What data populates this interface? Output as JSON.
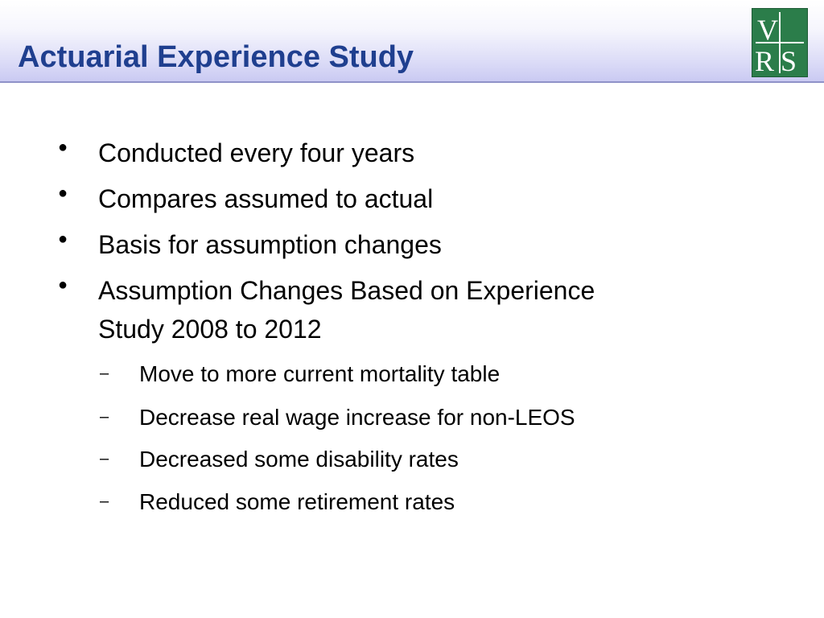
{
  "slide": {
    "title": "Actuarial Experience Study",
    "logo": {
      "text": "VRS",
      "background_color": "#2b7d4a",
      "letter_color": "#ffffff"
    },
    "bullet_marker": "●",
    "sub_bullet_marker": "–",
    "bullets": [
      "Conducted every four years",
      "Compares assumed to actual",
      "Basis for assumption changes",
      "Assumption Changes Based on Experience Study 2008 to 2012"
    ],
    "bullet_4_lines": [
      "Assumption Changes Based on Experience",
      "Study 2008 to 2012"
    ],
    "sub_bullets": [
      "Move to more current mortality table",
      "Decrease real wage increase for non-LEOS",
      "Decreased some disability rates",
      "Reduced some retirement rates"
    ]
  },
  "colors": {
    "title_color": "#1f3f8f",
    "title_band_bottom": "#c9c9f2",
    "text_color": "#000000"
  }
}
